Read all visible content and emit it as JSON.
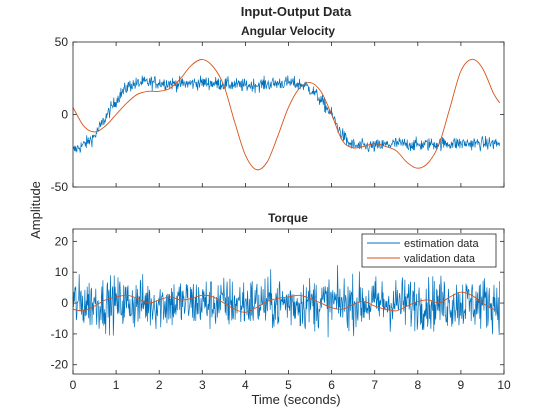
{
  "chart_data": {
    "type": "line",
    "title": "Input-Output Data",
    "shared_xlabel": "Time (seconds)",
    "shared_ylabel": "Amplitude",
    "colors": {
      "estimation": "#0072BD",
      "validation": "#D95319"
    },
    "xlim": [
      0,
      10
    ],
    "xticks": [
      "0",
      "1",
      "2",
      "3",
      "4",
      "5",
      "6",
      "7",
      "8",
      "9",
      "10"
    ],
    "legend": {
      "location": "top-right of Torque subplot",
      "entries": [
        "estimation data",
        "validation data"
      ]
    },
    "subplots": [
      {
        "title": "Angular Velocity",
        "ylim": [
          -50,
          50
        ],
        "yticks": [
          "50",
          "0",
          "-50"
        ],
        "yticks_values": [
          50,
          0,
          -50
        ],
        "series": [
          {
            "name": "estimation data",
            "x": [
              0,
              0.3,
              0.5,
              0.7,
              0.9,
              1.1,
              1.3,
              1.6,
              2.0,
              2.5,
              3.0,
              3.5,
              4.0,
              4.5,
              5.0,
              5.4,
              5.6,
              5.8,
              6.0,
              6.2,
              6.4,
              6.6,
              7.0,
              7.5,
              8.0,
              8.5,
              9.0,
              9.5,
              9.9
            ],
            "values": [
              -25,
              -20,
              -15,
              -5,
              5,
              14,
              20,
              22,
              22,
              21,
              22,
              21,
              20,
              21,
              22,
              20,
              15,
              8,
              0,
              -12,
              -20,
              -22,
              -22,
              -20,
              -21,
              -20,
              -20,
              -20,
              -20
            ],
            "noise_amplitude": 6
          },
          {
            "name": "validation data",
            "x": [
              0,
              0.25,
              0.5,
              0.75,
              1.0,
              1.25,
              1.5,
              1.75,
              2.0,
              2.25,
              2.5,
              2.75,
              3.0,
              3.25,
              3.5,
              3.75,
              4.0,
              4.25,
              4.5,
              4.75,
              5.0,
              5.25,
              5.5,
              5.75,
              6.0,
              6.25,
              6.5,
              6.75,
              7.0,
              7.25,
              7.5,
              7.75,
              8.0,
              8.25,
              8.5,
              8.75,
              9.0,
              9.25,
              9.5,
              9.75,
              9.9
            ],
            "values": [
              5,
              -8,
              -12,
              -8,
              0,
              8,
              14,
              16,
              16,
              18,
              25,
              34,
              38,
              33,
              20,
              -5,
              -28,
              -38,
              -33,
              -15,
              5,
              18,
              22,
              16,
              0,
              -18,
              -23,
              -22,
              -20,
              -22,
              -25,
              -33,
              -37,
              -33,
              -20,
              5,
              30,
              38,
              32,
              15,
              8
            ]
          }
        ]
      },
      {
        "title": "Torque",
        "ylim": [
          -23,
          24
        ],
        "yticks": [
          "20",
          "10",
          "0",
          "-10",
          "-20"
        ],
        "yticks_values": [
          20,
          10,
          0,
          -10,
          -20
        ],
        "series": [
          {
            "name": "estimation data",
            "x": [
              0,
              10
            ],
            "values": [
              0,
              0
            ],
            "noise_amplitude": 11
          },
          {
            "name": "validation data",
            "x": [
              0,
              0.25,
              0.5,
              0.75,
              1.0,
              1.25,
              1.5,
              1.75,
              2.0,
              2.25,
              2.5,
              2.75,
              3.0,
              3.25,
              3.5,
              3.75,
              4.0,
              4.25,
              4.5,
              4.75,
              5.0,
              5.25,
              5.5,
              5.75,
              6.0,
              6.25,
              6.5,
              6.75,
              7.0,
              7.25,
              7.5,
              7.75,
              8.0,
              8.25,
              8.5,
              8.75,
              9.0,
              9.25,
              9.5,
              9.75,
              9.9
            ],
            "values": [
              -2,
              -2.5,
              -1,
              1,
              2,
              2.5,
              1.5,
              0,
              1,
              2,
              1,
              1.5,
              2.5,
              2,
              0,
              -2,
              -3,
              -1.5,
              0.5,
              1.5,
              2,
              2.5,
              1.5,
              0,
              -1.5,
              -2,
              -0.5,
              0.5,
              -1,
              -2,
              -2.5,
              -1,
              0.5,
              1,
              0,
              2,
              3.5,
              2.5,
              0,
              -2,
              -2
            ]
          }
        ]
      }
    ]
  }
}
